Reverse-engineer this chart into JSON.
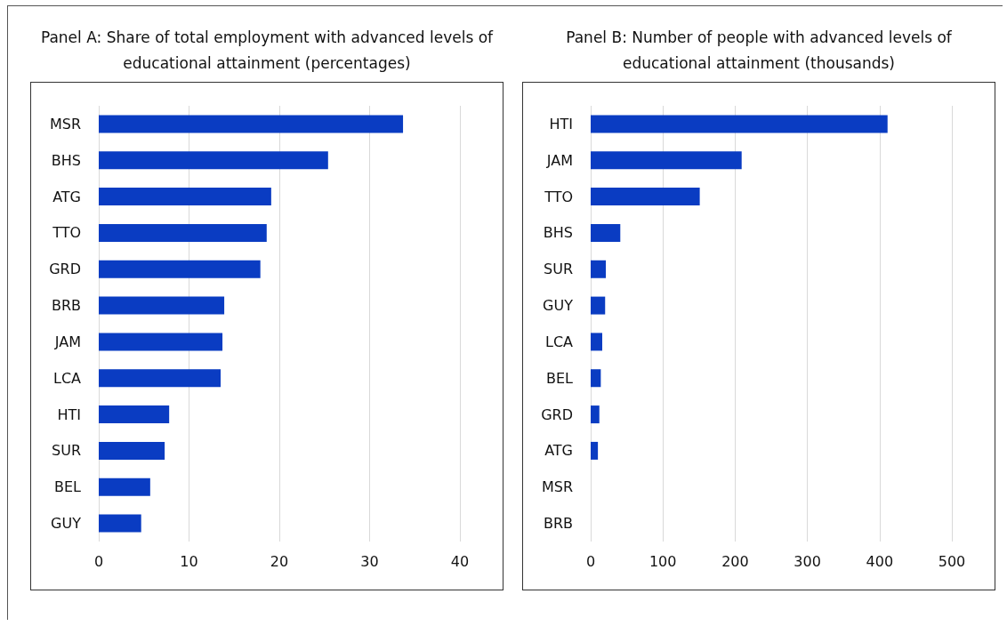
{
  "chart_data": [
    {
      "type": "bar",
      "orientation": "horizontal",
      "title": "Panel A: Share of total employment with advanced levels of educational attainment (percentages)",
      "categories": [
        "MSR",
        "BHS",
        "ATG",
        "TTO",
        "GRD",
        "BRB",
        "JAM",
        "LCA",
        "HTI",
        "SUR",
        "BEL",
        "GUY"
      ],
      "values": [
        33.7,
        25.4,
        19.1,
        18.6,
        17.9,
        13.9,
        13.7,
        13.5,
        7.8,
        7.3,
        5.7,
        4.7
      ],
      "color": "#0a3cc2",
      "xlim": [
        0,
        40
      ],
      "xticks": [
        0,
        10,
        20,
        30,
        40
      ],
      "grid": "x"
    },
    {
      "type": "bar",
      "orientation": "horizontal",
      "title": "Panel B: Number of people with advanced levels of educational attainment (thousands)",
      "categories": [
        "HTI",
        "JAM",
        "TTO",
        "BHS",
        "SUR",
        "GUY",
        "LCA",
        "BEL",
        "GRD",
        "ATG",
        "MSR",
        "BRB"
      ],
      "values": [
        411,
        209,
        151,
        41,
        21,
        20,
        16,
        14,
        12,
        10,
        null,
        null
      ],
      "color": "#0a3cc2",
      "xlim": [
        0,
        500
      ],
      "xticks": [
        0,
        100,
        200,
        300,
        400,
        500
      ],
      "grid": "x"
    }
  ]
}
